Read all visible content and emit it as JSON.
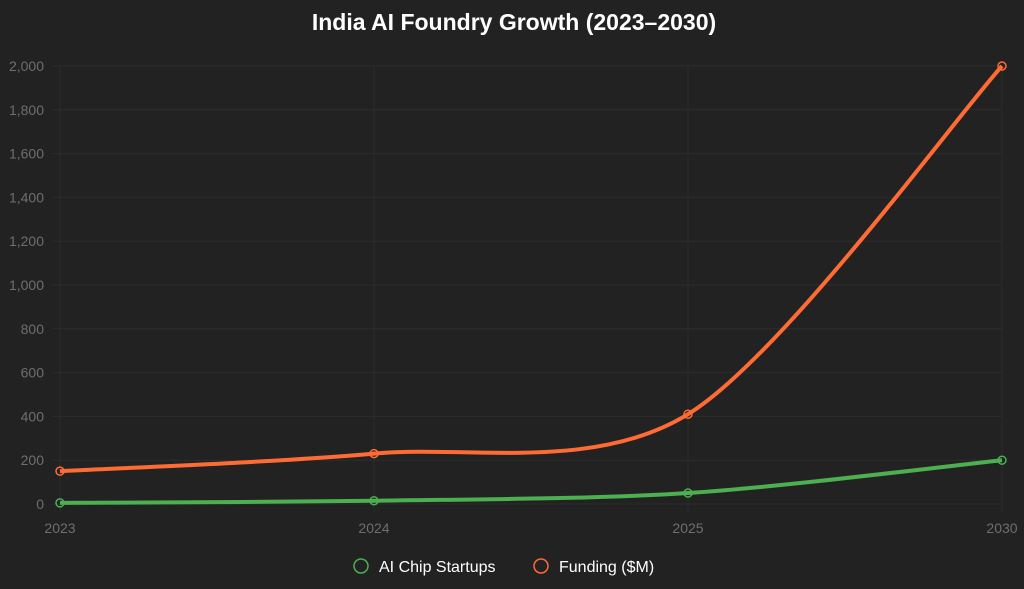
{
  "chart_data": {
    "type": "line",
    "title": "India AI Foundry Growth (2023–2030)",
    "categories": [
      "2023",
      "2024",
      "2025",
      "2030"
    ],
    "series": [
      {
        "name": "AI Chip Startups",
        "values": [
          5,
          15,
          50,
          200
        ],
        "color": "#4caf50"
      },
      {
        "name": "Funding ($M)",
        "values": [
          150,
          230,
          410,
          2000
        ],
        "color": "#ff6b35"
      }
    ],
    "yticks": [
      0,
      200,
      400,
      600,
      800,
      1000,
      1200,
      1400,
      1600,
      1800,
      2000
    ],
    "ytick_labels": [
      "0",
      "200",
      "400",
      "600",
      "800",
      "1,000",
      "1,200",
      "1,400",
      "1,600",
      "1,800",
      "2,000"
    ],
    "ylim": [
      0,
      2000
    ],
    "xlabel": "",
    "ylabel": "",
    "grid": true,
    "legend": "bottom"
  }
}
